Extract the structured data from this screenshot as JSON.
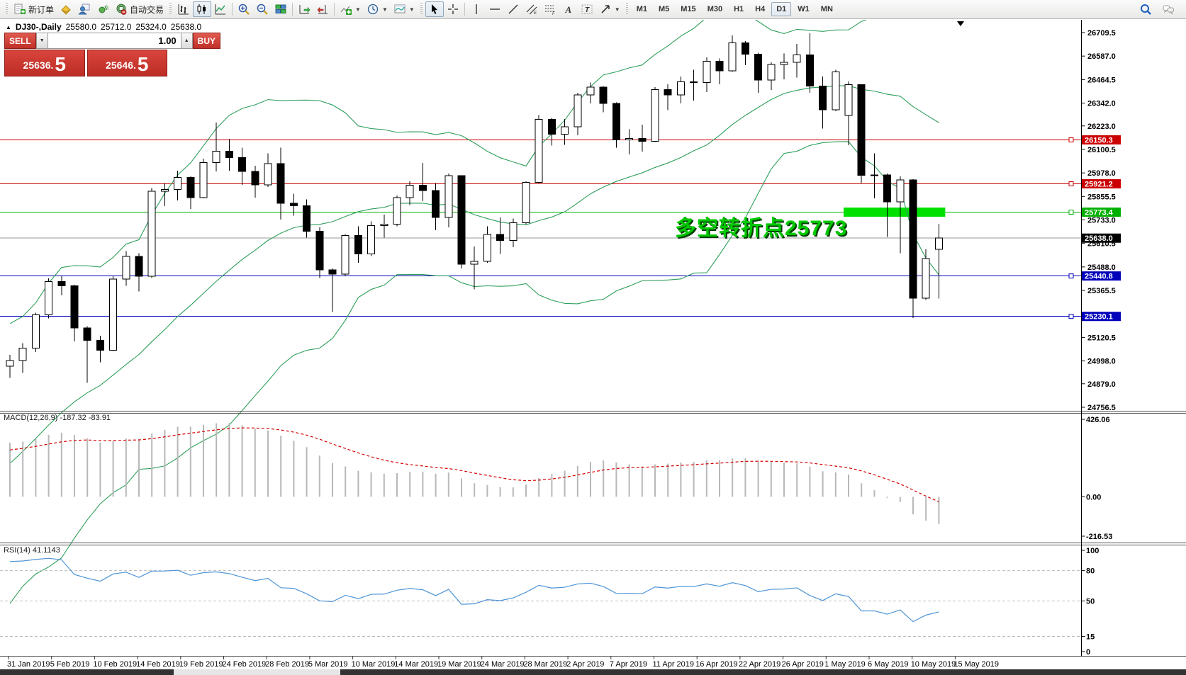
{
  "toolbar": {
    "new_order_label": "新订单",
    "auto_trading_label": "自动交易",
    "timeframes": [
      "M1",
      "M5",
      "M15",
      "M30",
      "H1",
      "H4",
      "D1",
      "W1",
      "MN"
    ],
    "active_timeframe": "D1"
  },
  "chart": {
    "marker": "▲",
    "symbol_period": "DJ30-,Daily",
    "open": "25580.0",
    "high": "25712.0",
    "low": "25324.0",
    "close": "25638.0",
    "trade_panel": {
      "sell_label": "SELL",
      "buy_label": "BUY",
      "volume": "1.00",
      "down_arrow": "▼",
      "up_arrow": "▲",
      "sell_price_main": "25636",
      "sell_price_sep": ".",
      "sell_price_big": "5",
      "buy_price_main": "25646",
      "buy_price_sep": ".",
      "buy_price_big": "5"
    },
    "price_axis": {
      "ticks": [
        "26709.5",
        "26587.0",
        "26464.5",
        "26342.0",
        "26223.0",
        "26100.5",
        "25978.0",
        "25855.5",
        "25733.0",
        "25610.5",
        "25488.0",
        "25365.5",
        "25120.5",
        "24998.0",
        "24879.0",
        "24756.5"
      ]
    },
    "levels": [
      {
        "label": "26150.3",
        "price": 26150.3,
        "color": "#cc0000"
      },
      {
        "label": "25921.2",
        "price": 25921.2,
        "color": "#cc0000"
      },
      {
        "label": "25773.4",
        "price": 25773.4,
        "color": "#00b000"
      },
      {
        "label": "25440.8",
        "price": 25440.8,
        "color": "#0000bb"
      },
      {
        "label": "25230.1",
        "price": 25230.1,
        "color": "#0000bb"
      }
    ],
    "current_price": {
      "label": "25638.0",
      "price": 25638.0,
      "line_color": "#9a9a9a",
      "badge_color": "#000000"
    },
    "highlight_bar": {
      "price": 25773.4,
      "start_index": 65,
      "end_index": 72,
      "color": "#00e000",
      "thickness": 13
    },
    "annotation": {
      "text": "多空转折点25773",
      "color": "#00c800"
    }
  },
  "macd_panel": {
    "label": "MACD(12,26,9)",
    "value": "-187.32",
    "signal_value": "-83.91",
    "ticks": [
      "426.06",
      "0.00",
      "-216.53"
    ],
    "histogram_color": "#b8b8b8",
    "signal_color": "#d40000"
  },
  "rsi_panel": {
    "label": "RSI(14)",
    "value": "41.1143",
    "ticks": [
      "100",
      "80",
      "50",
      "15",
      "0"
    ],
    "line_color": "#4d94d6"
  },
  "x_axis": {
    "dates": [
      "31 Jan 2019",
      "5 Feb 2019",
      "10 Feb 2019",
      "14 Feb 2019",
      "19 Feb 2019",
      "24 Feb 2019",
      "28 Feb 2019",
      "5 Mar 2019",
      "10 Mar 2019",
      "14 Mar 2019",
      "19 Mar 2019",
      "24 Mar 2019",
      "28 Mar 2019",
      "2 Apr 2019",
      "7 Apr 2019",
      "11 Apr 2019",
      "16 Apr 2019",
      "22 Apr 2019",
      "26 Apr 2019",
      "1 May 2019",
      "6 May 2019",
      "10 May 2019",
      "15 May 2019"
    ]
  },
  "chart_data": {
    "type": "candlestick",
    "symbol": "DJ30",
    "timeframe": "Daily",
    "title": "DJ30-,Daily",
    "ylim": [
      24756.5,
      26709.5
    ],
    "ohlc": [
      [
        24970,
        25030,
        24910,
        25000
      ],
      [
        25000,
        25090,
        24935,
        25064
      ],
      [
        25064,
        25250,
        25045,
        25239
      ],
      [
        25239,
        25428,
        25220,
        25411
      ],
      [
        25411,
        25440,
        25340,
        25390
      ],
      [
        25390,
        25395,
        25100,
        25170
      ],
      [
        25170,
        25180,
        24883,
        25106
      ],
      [
        25106,
        25130,
        24990,
        25053
      ],
      [
        25053,
        25440,
        25050,
        25425
      ],
      [
        25425,
        25570,
        25390,
        25543
      ],
      [
        25543,
        25560,
        25360,
        25439
      ],
      [
        25439,
        25900,
        25430,
        25883
      ],
      [
        25883,
        25925,
        25805,
        25891
      ],
      [
        25891,
        25990,
        25835,
        25954
      ],
      [
        25954,
        25960,
        25790,
        25850
      ],
      [
        25850,
        26052,
        25845,
        26032
      ],
      [
        26032,
        26241,
        25985,
        26092
      ],
      [
        26092,
        26155,
        25990,
        26058
      ],
      [
        26058,
        26110,
        25915,
        25985
      ],
      [
        25985,
        26015,
        25850,
        25916
      ],
      [
        25916,
        26080,
        25905,
        26026
      ],
      [
        26026,
        26110,
        25735,
        25819
      ],
      [
        25819,
        25870,
        25755,
        25806
      ],
      [
        25806,
        25840,
        25640,
        25673
      ],
      [
        25673,
        25695,
        25430,
        25473
      ],
      [
        25473,
        25480,
        25253,
        25450
      ],
      [
        25450,
        25660,
        25440,
        25651
      ],
      [
        25651,
        25700,
        25510,
        25555
      ],
      [
        25555,
        25725,
        25545,
        25703
      ],
      [
        25703,
        25760,
        25640,
        25710
      ],
      [
        25710,
        25860,
        25700,
        25849
      ],
      [
        25849,
        25935,
        25810,
        25914
      ],
      [
        25914,
        26030,
        25830,
        25887
      ],
      [
        25887,
        25925,
        25680,
        25746
      ],
      [
        25746,
        25975,
        25695,
        25963
      ],
      [
        25963,
        25965,
        25480,
        25502
      ],
      [
        25502,
        25595,
        25372,
        25517
      ],
      [
        25517,
        25700,
        25510,
        25658
      ],
      [
        25658,
        25745,
        25555,
        25626
      ],
      [
        25626,
        25740,
        25590,
        25718
      ],
      [
        25718,
        25935,
        25710,
        25929
      ],
      [
        25929,
        26280,
        25925,
        26258
      ],
      [
        26258,
        26265,
        26120,
        26179
      ],
      [
        26179,
        26260,
        26125,
        26218
      ],
      [
        26218,
        26395,
        26175,
        26385
      ],
      [
        26385,
        26450,
        26340,
        26425
      ],
      [
        26425,
        26430,
        26295,
        26341
      ],
      [
        26341,
        26345,
        26110,
        26151
      ],
      [
        26151,
        26205,
        26075,
        26157
      ],
      [
        26157,
        26230,
        26090,
        26143
      ],
      [
        26143,
        26425,
        26140,
        26412
      ],
      [
        26412,
        26440,
        26305,
        26385
      ],
      [
        26385,
        26480,
        26340,
        26453
      ],
      [
        26453,
        26515,
        26355,
        26449
      ],
      [
        26449,
        26580,
        26400,
        26560
      ],
      [
        26560,
        26575,
        26440,
        26511
      ],
      [
        26511,
        26695,
        26505,
        26656
      ],
      [
        26656,
        26665,
        26540,
        26597
      ],
      [
        26597,
        26605,
        26395,
        26462
      ],
      [
        26462,
        26555,
        26410,
        26543
      ],
      [
        26543,
        26600,
        26465,
        26554
      ],
      [
        26554,
        26650,
        26475,
        26593
      ],
      [
        26593,
        26706,
        26395,
        26430
      ],
      [
        26430,
        26480,
        26210,
        26308
      ],
      [
        26308,
        26515,
        26300,
        26505
      ],
      [
        26277,
        26455,
        26123,
        26438
      ],
      [
        26438,
        26440,
        25925,
        25965
      ],
      [
        25965,
        26080,
        25845,
        25967
      ],
      [
        25967,
        25975,
        25645,
        25828
      ],
      [
        25828,
        25960,
        25560,
        25942
      ],
      [
        25942,
        25945,
        25222,
        25325
      ],
      [
        25325,
        25580,
        25315,
        25532
      ],
      [
        25580,
        25712,
        25324,
        25638
      ]
    ],
    "warmup_closes": [
      23680,
      23780,
      23900,
      24020,
      24100,
      24040,
      24160,
      24280,
      24350,
      24440,
      24400,
      24540,
      24640,
      24580,
      24700,
      24760,
      24850,
      24900,
      24870,
      24950
    ],
    "indicators": {
      "bollinger": {
        "period": 20,
        "deviation": 2,
        "color": "#2e9e5b"
      },
      "macd": {
        "fast": 12,
        "slow": 26,
        "signal": 9
      },
      "rsi": {
        "period": 14
      }
    }
  }
}
